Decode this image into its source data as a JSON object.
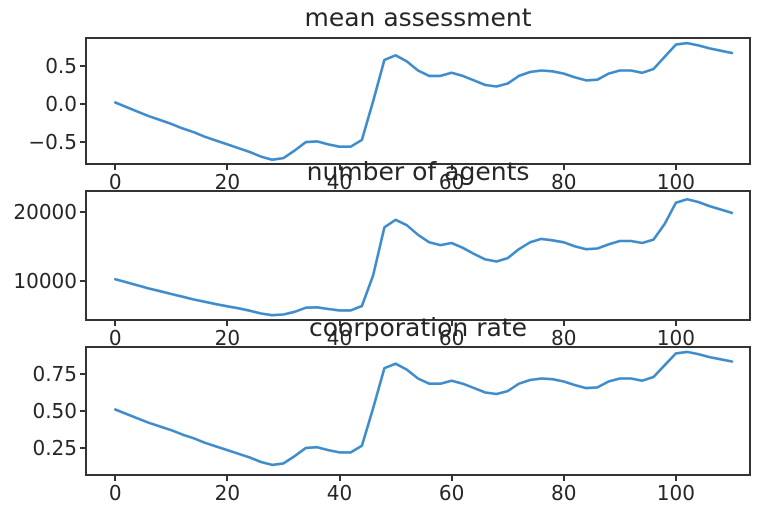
{
  "figure": {
    "background": "#ffffff",
    "frame_color": "#333333",
    "text_color": "#262626",
    "line_color": "#3e8ccb"
  },
  "chart_data": [
    {
      "type": "line",
      "title": "mean assessment",
      "xlabel": "",
      "ylabel": "",
      "grid": false,
      "legend": null,
      "line_color": "#3e8ccb",
      "xlim": [
        -5.4,
        113.4
      ],
      "ylim": [
        -0.8,
        0.88
      ],
      "xticks": [
        0,
        20,
        40,
        60,
        80,
        100
      ],
      "xtick_labels": [
        "0",
        "20",
        "40",
        "60",
        "80",
        "100"
      ],
      "yticks": [
        0.5,
        0.0,
        -0.5
      ],
      "ytick_labels": [
        "0.5",
        "0.0",
        "−0.5"
      ],
      "x": [
        0,
        2,
        4,
        6,
        8,
        10,
        12,
        14,
        16,
        18,
        20,
        22,
        24,
        26,
        28,
        30,
        32,
        34,
        36,
        38,
        40,
        42,
        44,
        46,
        48,
        50,
        52,
        54,
        56,
        58,
        60,
        62,
        64,
        66,
        68,
        70,
        72,
        74,
        76,
        78,
        80,
        82,
        84,
        86,
        88,
        90,
        92,
        94,
        96,
        98,
        100,
        102,
        104,
        106,
        108,
        110
      ],
      "values": [
        0.02,
        -0.04,
        -0.1,
        -0.16,
        -0.21,
        -0.26,
        -0.32,
        -0.37,
        -0.43,
        -0.48,
        -0.53,
        -0.58,
        -0.63,
        -0.69,
        -0.73,
        -0.71,
        -0.61,
        -0.5,
        -0.49,
        -0.53,
        -0.56,
        -0.56,
        -0.47,
        0.04,
        0.58,
        0.64,
        0.56,
        0.44,
        0.37,
        0.37,
        0.41,
        0.37,
        0.31,
        0.25,
        0.23,
        0.27,
        0.37,
        0.42,
        0.44,
        0.43,
        0.4,
        0.35,
        0.31,
        0.32,
        0.4,
        0.44,
        0.44,
        0.41,
        0.46,
        0.62,
        0.78,
        0.8,
        0.77,
        0.73,
        0.7,
        0.67
      ]
    },
    {
      "type": "line",
      "title": "number of agents",
      "xlabel": "",
      "ylabel": "",
      "grid": false,
      "legend": null,
      "line_color": "#3e8ccb",
      "xlim": [
        -5.4,
        113.4
      ],
      "ylim": [
        4100,
        23250
      ],
      "xticks": [
        0,
        20,
        40,
        60,
        80,
        100
      ],
      "xtick_labels": [
        "0",
        "20",
        "40",
        "60",
        "80",
        "100"
      ],
      "yticks": [
        20000,
        10000
      ],
      "ytick_labels": [
        "20000",
        "10000"
      ],
      "x": [
        0,
        2,
        4,
        6,
        8,
        10,
        12,
        14,
        16,
        18,
        20,
        22,
        24,
        26,
        28,
        30,
        32,
        34,
        36,
        38,
        40,
        42,
        44,
        46,
        48,
        50,
        52,
        54,
        56,
        58,
        60,
        62,
        64,
        66,
        68,
        70,
        72,
        74,
        76,
        78,
        80,
        82,
        84,
        86,
        88,
        90,
        92,
        94,
        96,
        98,
        100,
        102,
        104,
        106,
        108,
        110
      ],
      "values": [
        10200,
        9750,
        9300,
        8850,
        8450,
        8050,
        7650,
        7250,
        6900,
        6550,
        6250,
        5950,
        5600,
        5200,
        4950,
        5050,
        5450,
        6050,
        6100,
        5850,
        5650,
        5650,
        6300,
        10800,
        17800,
        18900,
        18100,
        16700,
        15600,
        15200,
        15500,
        14800,
        13900,
        13100,
        12800,
        13300,
        14600,
        15600,
        16100,
        15900,
        15600,
        15000,
        14600,
        14700,
        15300,
        15800,
        15800,
        15500,
        16000,
        18300,
        21400,
        21900,
        21500,
        20900,
        20400,
        19900
      ]
    },
    {
      "type": "line",
      "title": "coorporation rate",
      "xlabel": "",
      "ylabel": "",
      "grid": false,
      "legend": null,
      "line_color": "#3e8ccb",
      "xlim": [
        -5.4,
        113.4
      ],
      "ylim": [
        0.06,
        0.94
      ],
      "xticks": [
        0,
        20,
        40,
        60,
        80,
        100
      ],
      "xtick_labels": [
        "0",
        "20",
        "40",
        "60",
        "80",
        "100"
      ],
      "yticks": [
        0.75,
        0.5,
        0.25
      ],
      "ytick_labels": [
        "0.75",
        "0.50",
        "0.25"
      ],
      "x": [
        0,
        2,
        4,
        6,
        8,
        10,
        12,
        14,
        16,
        18,
        20,
        22,
        24,
        26,
        28,
        30,
        32,
        34,
        36,
        38,
        40,
        42,
        44,
        46,
        48,
        50,
        52,
        54,
        56,
        58,
        60,
        62,
        64,
        66,
        68,
        70,
        72,
        74,
        76,
        78,
        80,
        82,
        84,
        86,
        88,
        90,
        92,
        94,
        96,
        98,
        100,
        102,
        104,
        106,
        108,
        110
      ],
      "values": [
        0.51,
        0.48,
        0.45,
        0.42,
        0.395,
        0.37,
        0.34,
        0.315,
        0.285,
        0.26,
        0.235,
        0.21,
        0.185,
        0.155,
        0.135,
        0.145,
        0.195,
        0.25,
        0.255,
        0.235,
        0.22,
        0.22,
        0.265,
        0.52,
        0.79,
        0.82,
        0.78,
        0.72,
        0.685,
        0.685,
        0.705,
        0.685,
        0.655,
        0.625,
        0.615,
        0.635,
        0.685,
        0.71,
        0.72,
        0.715,
        0.7,
        0.675,
        0.655,
        0.66,
        0.7,
        0.72,
        0.72,
        0.705,
        0.73,
        0.81,
        0.89,
        0.9,
        0.885,
        0.865,
        0.85,
        0.835
      ]
    }
  ]
}
